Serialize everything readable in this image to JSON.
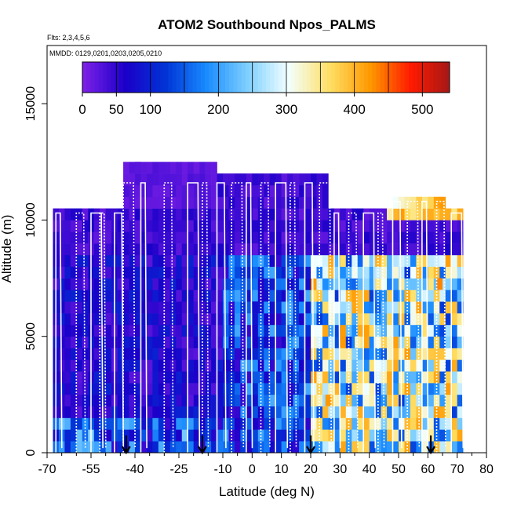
{
  "chart_data": {
    "type": "heatmap",
    "title": "ATOM2 Southbound Npos_PALMS",
    "flights_text": "Flts: 2,3,4,5,6",
    "dates_text": "MMDD: 0129,0201,0203,0205,0210",
    "xlabel": "Latitude (deg N)",
    "ylabel": "Altitude (m)",
    "xlim": [
      -70,
      80
    ],
    "ylim": [
      0,
      17500
    ],
    "x_ticks": [
      -70,
      -55,
      -40,
      -25,
      -10,
      0,
      10,
      20,
      30,
      40,
      50,
      60,
      70,
      80
    ],
    "x_minor_ticks": [
      -65,
      -60,
      -50,
      -45,
      -35,
      -30,
      -20,
      -15,
      -5,
      5,
      15,
      25,
      35,
      45,
      55,
      65,
      75
    ],
    "y_ticks": [
      0,
      5000,
      10000,
      15000
    ],
    "colorbar": {
      "range": [
        0,
        540
      ],
      "ticks": [
        0,
        50,
        100,
        200,
        300,
        400,
        500
      ],
      "colors": [
        "#7a1fe6",
        "#1a00c8",
        "#0034d6",
        "#1a8cff",
        "#7fd0ff",
        "#f2ffff",
        "#ffe066",
        "#ff9900",
        "#ff1a00",
        "#a01818"
      ]
    },
    "column_top_altitude_m": [
      {
        "lat_range": [
          -68,
          -45
        ],
        "top": 10500
      },
      {
        "lat_range": [
          -45,
          -12
        ],
        "top": 12500
      },
      {
        "lat_range": [
          -12,
          25
        ],
        "top": 12000
      },
      {
        "lat_range": [
          25,
          48
        ],
        "top": 10500
      },
      {
        "lat_range": [
          48,
          65
        ],
        "top": 11000
      },
      {
        "lat_range": [
          65,
          71
        ],
        "top": 10500
      }
    ],
    "sample_cells_npos": [
      {
        "lat": -40,
        "alt": 12000,
        "value": 20
      },
      {
        "lat": -20,
        "alt": 9000,
        "value": 35
      },
      {
        "lat": 0,
        "alt": 6000,
        "value": 80
      },
      {
        "lat": 25,
        "alt": 2000,
        "value": 420
      },
      {
        "lat": 35,
        "alt": 4500,
        "value": 330
      },
      {
        "lat": 60,
        "alt": 500,
        "value": 340
      },
      {
        "lat": 63,
        "alt": 7000,
        "value": 430
      }
    ],
    "profile_arrows_lat": [
      -43,
      -17,
      20,
      61
    ]
  }
}
